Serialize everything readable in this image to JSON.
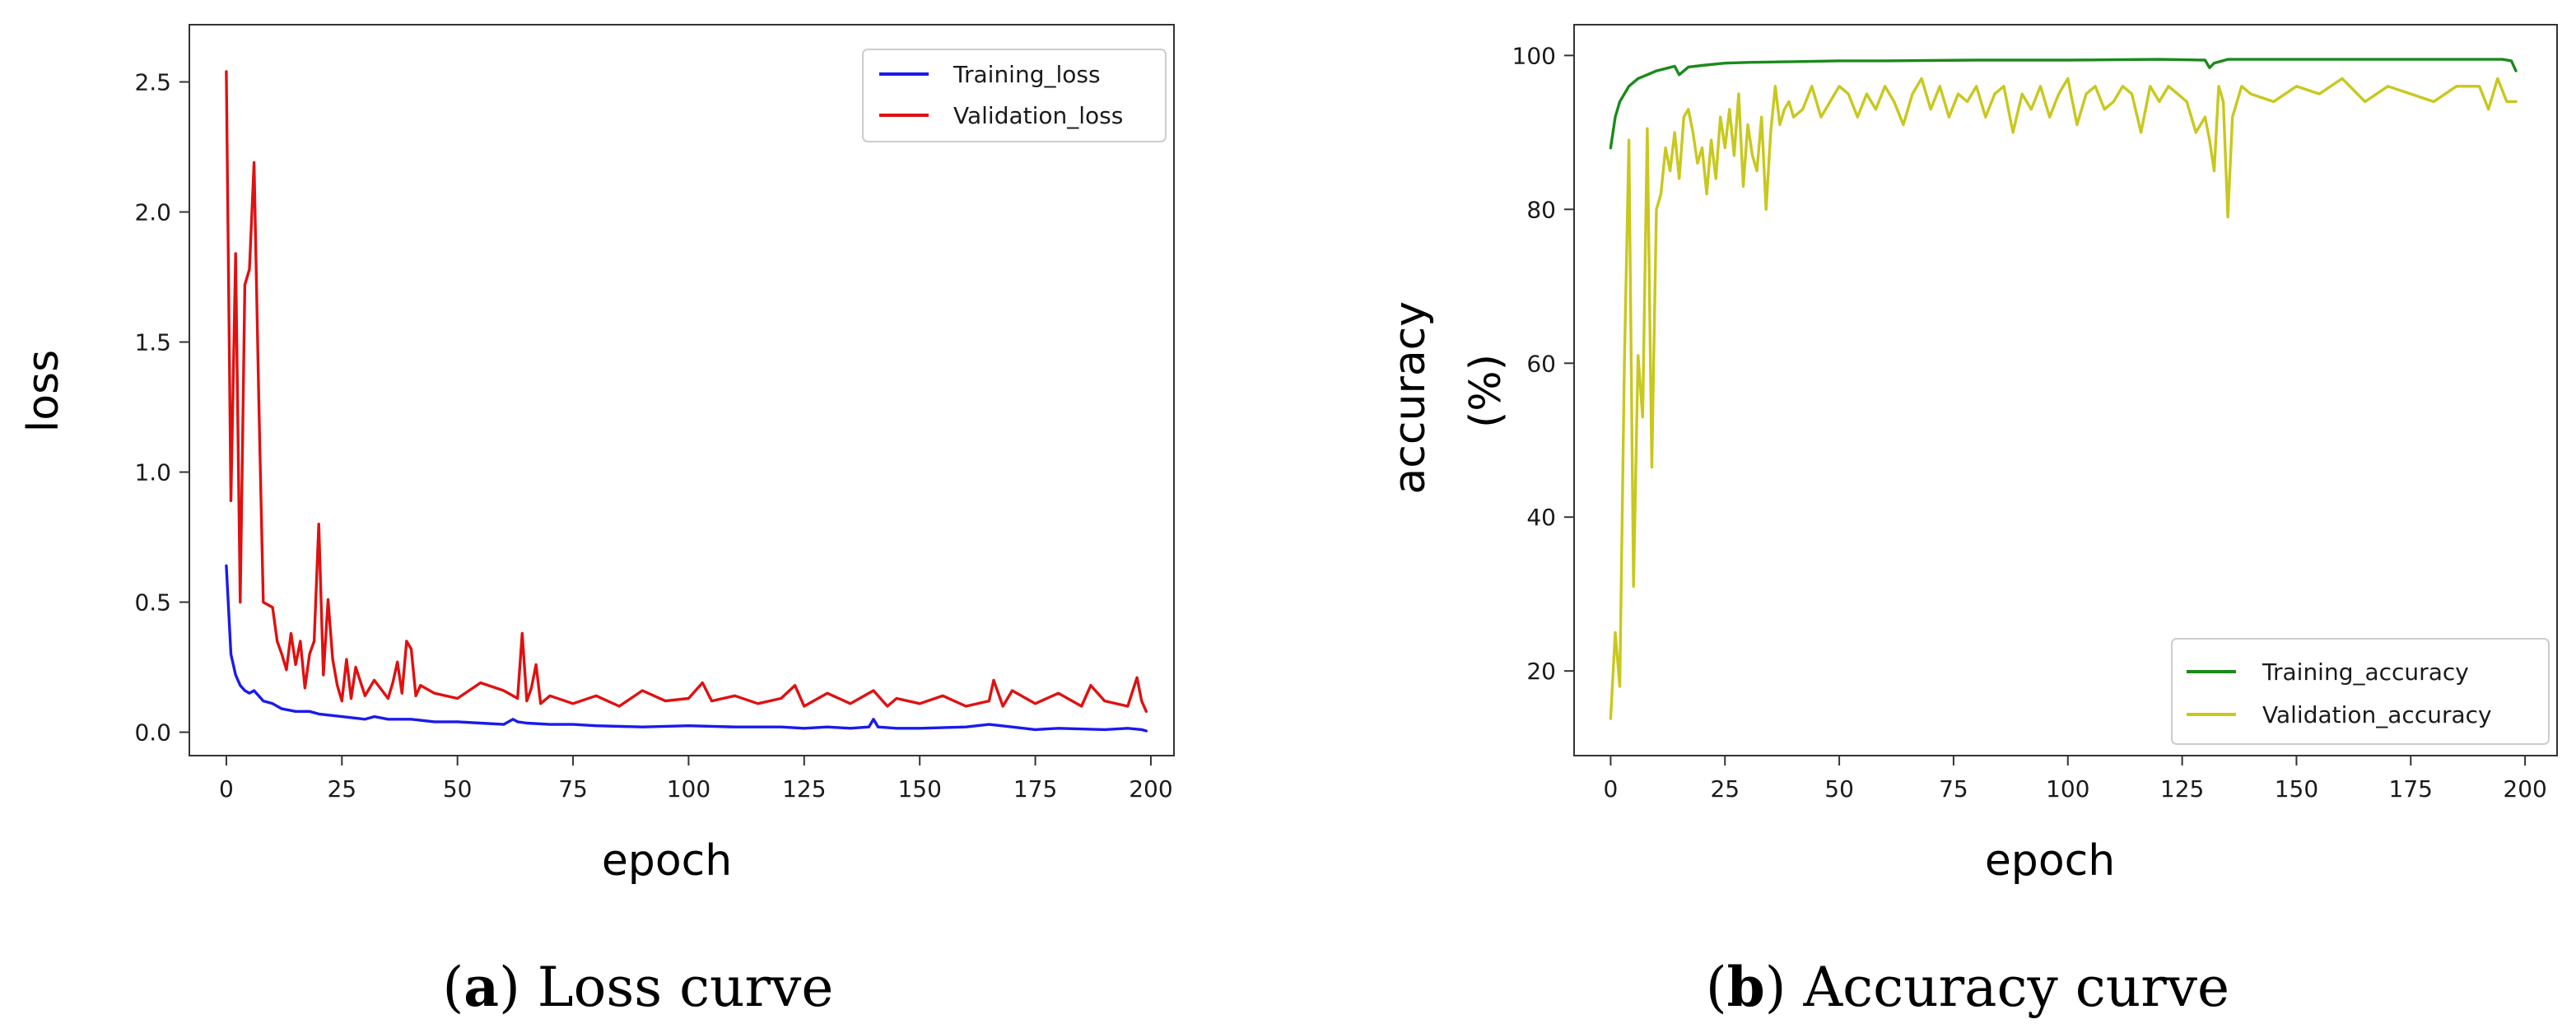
{
  "chart_data": [
    {
      "type": "line",
      "panel": "a",
      "xlabel": "epoch",
      "ylabel": "loss",
      "xlim": [
        -8,
        205
      ],
      "ylim": [
        -0.09,
        2.72
      ],
      "xticks": [
        0,
        25,
        50,
        75,
        100,
        125,
        150,
        175,
        200
      ],
      "yticks": [
        0.0,
        0.5,
        1.0,
        1.5,
        2.0,
        2.5
      ],
      "ytick_labels": [
        "0.0",
        "0.5",
        "1.0",
        "1.5",
        "2.0",
        "2.5"
      ],
      "legend_position": "top-right",
      "series": [
        {
          "name": "Training_loss",
          "color": "#1a1aee",
          "x": [
            0,
            1,
            2,
            3,
            4,
            5,
            6,
            8,
            10,
            12,
            15,
            18,
            20,
            25,
            30,
            32,
            35,
            40,
            45,
            50,
            55,
            60,
            62,
            63,
            65,
            70,
            75,
            80,
            90,
            100,
            110,
            120,
            125,
            130,
            135,
            139,
            140,
            141,
            145,
            150,
            160,
            165,
            170,
            175,
            180,
            190,
            195,
            198,
            199
          ],
          "y": [
            0.64,
            0.3,
            0.22,
            0.18,
            0.16,
            0.15,
            0.16,
            0.12,
            0.11,
            0.09,
            0.08,
            0.08,
            0.07,
            0.06,
            0.05,
            0.06,
            0.05,
            0.05,
            0.04,
            0.04,
            0.035,
            0.03,
            0.05,
            0.04,
            0.035,
            0.03,
            0.03,
            0.025,
            0.02,
            0.025,
            0.02,
            0.02,
            0.015,
            0.02,
            0.015,
            0.02,
            0.05,
            0.02,
            0.015,
            0.015,
            0.02,
            0.03,
            0.02,
            0.01,
            0.015,
            0.01,
            0.015,
            0.01,
            0.005
          ]
        },
        {
          "name": "Validation_loss",
          "color": "#e01010",
          "x": [
            0,
            1,
            2,
            3,
            4,
            5,
            6,
            7,
            8,
            10,
            11,
            12,
            13,
            14,
            15,
            16,
            17,
            18,
            19,
            20,
            21,
            22,
            23,
            24,
            25,
            26,
            27,
            28,
            30,
            32,
            35,
            36,
            37,
            38,
            39,
            40,
            41,
            42,
            45,
            50,
            55,
            60,
            63,
            64,
            65,
            66,
            67,
            68,
            70,
            75,
            80,
            85,
            90,
            95,
            100,
            103,
            105,
            110,
            115,
            120,
            123,
            125,
            130,
            135,
            140,
            143,
            145,
            150,
            155,
            160,
            165,
            166,
            168,
            170,
            175,
            180,
            185,
            187,
            190,
            195,
            197,
            198,
            199
          ],
          "y": [
            2.54,
            0.89,
            1.84,
            0.5,
            1.72,
            1.78,
            2.19,
            1.3,
            0.5,
            0.48,
            0.35,
            0.3,
            0.24,
            0.38,
            0.26,
            0.35,
            0.17,
            0.3,
            0.35,
            0.8,
            0.22,
            0.51,
            0.28,
            0.18,
            0.12,
            0.28,
            0.13,
            0.25,
            0.14,
            0.2,
            0.13,
            0.19,
            0.27,
            0.15,
            0.35,
            0.32,
            0.14,
            0.18,
            0.15,
            0.13,
            0.19,
            0.16,
            0.13,
            0.38,
            0.12,
            0.17,
            0.26,
            0.11,
            0.14,
            0.11,
            0.14,
            0.1,
            0.16,
            0.12,
            0.13,
            0.19,
            0.12,
            0.14,
            0.11,
            0.13,
            0.18,
            0.1,
            0.15,
            0.11,
            0.16,
            0.1,
            0.13,
            0.11,
            0.14,
            0.1,
            0.12,
            0.2,
            0.1,
            0.16,
            0.11,
            0.15,
            0.1,
            0.18,
            0.12,
            0.1,
            0.21,
            0.12,
            0.08
          ]
        }
      ]
    },
    {
      "type": "line",
      "panel": "b",
      "xlabel": "epoch",
      "ylabel": "accuracy\n(%)",
      "ylabel_lines": [
        "accuracy",
        "(%)"
      ],
      "xlim": [
        -8,
        207
      ],
      "ylim": [
        9,
        104
      ],
      "xticks": [
        0,
        25,
        50,
        75,
        100,
        125,
        150,
        175,
        200
      ],
      "yticks": [
        20,
        40,
        60,
        80,
        100
      ],
      "legend_position": "lower-right",
      "series": [
        {
          "name": "Training_accuracy",
          "color": "#1a8a1a",
          "x": [
            0,
            1,
            2,
            4,
            6,
            8,
            10,
            12,
            14,
            15,
            17,
            20,
            25,
            30,
            40,
            50,
            60,
            80,
            100,
            120,
            130,
            131,
            132,
            135,
            140,
            160,
            180,
            195,
            197,
            198
          ],
          "y": [
            88,
            92,
            94,
            96,
            97,
            97.5,
            98,
            98.3,
            98.6,
            97.5,
            98.5,
            98.7,
            99,
            99.1,
            99.2,
            99.3,
            99.3,
            99.4,
            99.4,
            99.5,
            99.4,
            98.4,
            99.0,
            99.5,
            99.5,
            99.5,
            99.5,
            99.5,
            99.3,
            98
          ]
        },
        {
          "name": "Validation_accuracy",
          "color": "#c8c81e",
          "x": [
            0,
            1,
            2,
            3,
            4,
            5,
            6,
            7,
            8,
            9,
            10,
            11,
            12,
            13,
            14,
            15,
            16,
            17,
            18,
            19,
            20,
            21,
            22,
            23,
            24,
            25,
            26,
            27,
            28,
            29,
            30,
            31,
            32,
            33,
            34,
            35,
            36,
            37,
            38,
            39,
            40,
            42,
            44,
            46,
            48,
            50,
            52,
            54,
            56,
            58,
            60,
            62,
            64,
            66,
            68,
            70,
            72,
            74,
            76,
            78,
            80,
            82,
            84,
            86,
            88,
            90,
            92,
            94,
            96,
            98,
            100,
            102,
            104,
            106,
            108,
            110,
            112,
            114,
            116,
            118,
            120,
            122,
            124,
            126,
            128,
            130,
            131,
            132,
            133,
            134,
            135,
            136,
            138,
            140,
            145,
            150,
            155,
            160,
            165,
            170,
            175,
            180,
            185,
            190,
            192,
            194,
            196,
            198
          ],
          "y": [
            13.8,
            25,
            18,
            60,
            89,
            31,
            61,
            53,
            90.5,
            46.5,
            80,
            82,
            88,
            85,
            90,
            84,
            92,
            93,
            90,
            86,
            88,
            82,
            89,
            84,
            92,
            88,
            93,
            87,
            95,
            83,
            91,
            87,
            85,
            92,
            80,
            90,
            96,
            91,
            93,
            94,
            92,
            93,
            96,
            92,
            94,
            96,
            95,
            92,
            95,
            93,
            96,
            94,
            91,
            95,
            97,
            93,
            96,
            92,
            95,
            94,
            96,
            92,
            95,
            96,
            90,
            95,
            93,
            96,
            92,
            95,
            97,
            91,
            95,
            96,
            93,
            94,
            96,
            95,
            90,
            96,
            94,
            96,
            95,
            94,
            90,
            92,
            89,
            85,
            96,
            94,
            79,
            92,
            96,
            95,
            94,
            96,
            95,
            97,
            94,
            96,
            95,
            94,
            96,
            96,
            93,
            97,
            94,
            94
          ]
        }
      ]
    }
  ],
  "captions": [
    {
      "label": "a",
      "text": "Loss curve"
    },
    {
      "label": "b",
      "text": "Accuracy curve"
    }
  ]
}
